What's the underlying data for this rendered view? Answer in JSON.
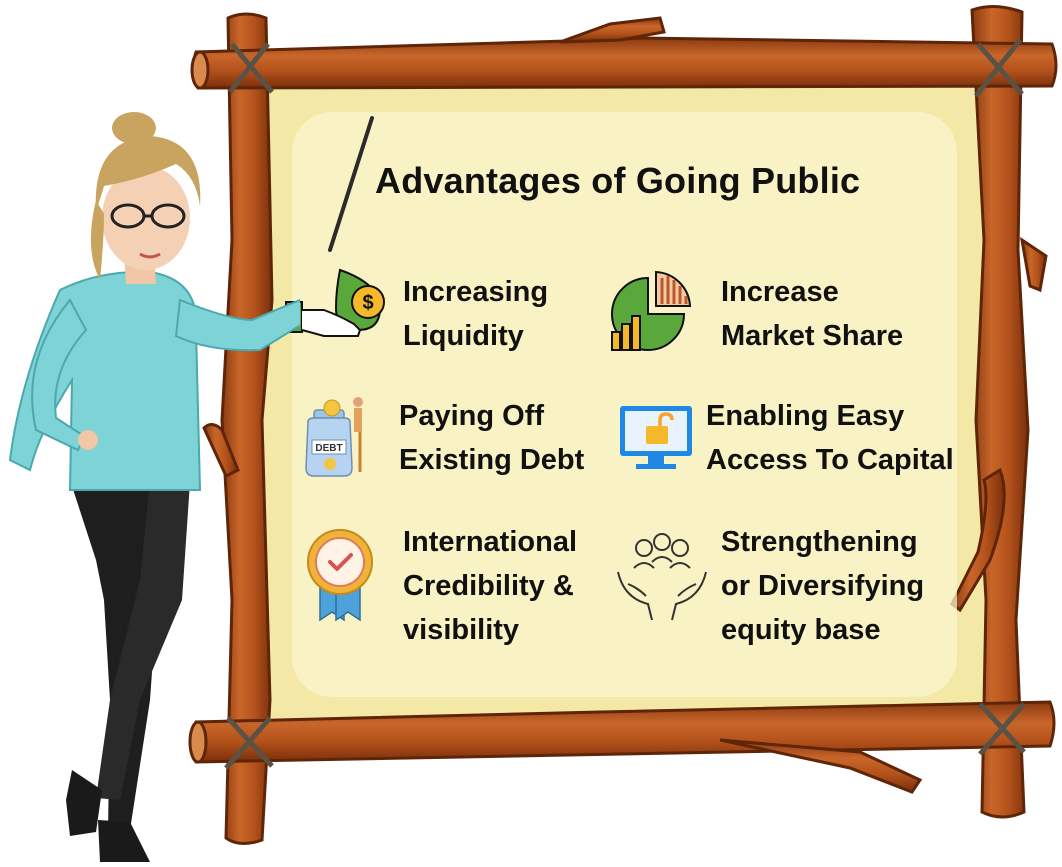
{
  "title": "Advantages of Going Public",
  "items": [
    {
      "icon": "liquidity-hand-coin-icon",
      "lines": [
        "Increasing",
        "Liquidity"
      ]
    },
    {
      "icon": "market-share-chart-icon",
      "lines": [
        "Increase",
        "Market Share"
      ]
    },
    {
      "icon": "debt-jar-icon",
      "icon_text": "DEBT",
      "lines": [
        "Paying Off",
        "Existing Debt"
      ]
    },
    {
      "icon": "unlocked-monitor-icon",
      "lines": [
        "Enabling Easy",
        "Access To Capital"
      ]
    },
    {
      "icon": "credibility-badge-icon",
      "lines": [
        "International",
        "Credibility &",
        "visibility"
      ]
    },
    {
      "icon": "people-hands-icon",
      "lines": [
        "Strengthening",
        "or Diversifying",
        "equity base"
      ]
    }
  ],
  "colors": {
    "wood": "#b9561d",
    "wood_dark": "#7a3510",
    "board": "#f8f0bc",
    "shirt": "#7ed3d6",
    "pants": "#1c1c1c",
    "hair": "#c9a461",
    "green_icon": "#5aa83c",
    "gold_icon": "#f4b82a",
    "blue_icon": "#1e88e5"
  }
}
